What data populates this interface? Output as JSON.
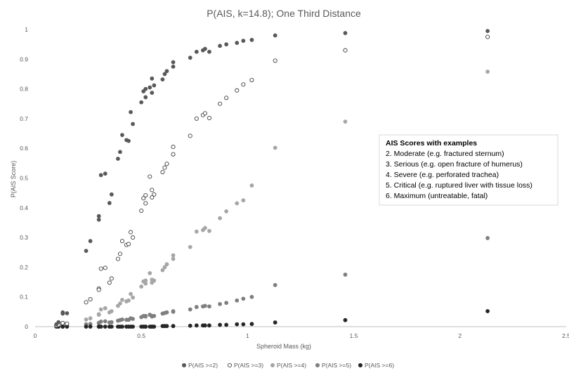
{
  "chart_data": {
    "type": "scatter",
    "title": "P(AIS, k=14.8); One Third Distance",
    "xlabel": "Spheroid Mass (kg)",
    "ylabel": "P(AIS Score)",
    "xlim": [
      0,
      2.5
    ],
    "ylim": [
      0,
      1
    ],
    "xticks": [
      0,
      0.5,
      1,
      1.5,
      2,
      2.5
    ],
    "xtick_labels": [
      "0",
      "0.5",
      "1",
      "1.5",
      "2",
      "2.5"
    ],
    "yticks": [
      0,
      0.1,
      0.2,
      0.3,
      0.4,
      0.5,
      0.6,
      0.7,
      0.8,
      0.9,
      1
    ],
    "ytick_labels": [
      "0",
      "0.1",
      "0.2",
      "0.3",
      "0.4",
      "0.5",
      "0.6",
      "0.7",
      "0.8",
      "0.9",
      "1"
    ],
    "grid": false,
    "legend_position": "bottom",
    "x": [
      0.1,
      0.11,
      0.13,
      0.13,
      0.15,
      0.24,
      0.26,
      0.3,
      0.3,
      0.31,
      0.33,
      0.35,
      0.36,
      0.39,
      0.4,
      0.41,
      0.43,
      0.44,
      0.45,
      0.46,
      0.5,
      0.51,
      0.52,
      0.52,
      0.54,
      0.55,
      0.55,
      0.56,
      0.6,
      0.61,
      0.62,
      0.65,
      0.65,
      0.73,
      0.76,
      0.79,
      0.8,
      0.82,
      0.87,
      0.9,
      0.95,
      0.98,
      1.02,
      1.13,
      1.46,
      2.13
    ],
    "series": [
      {
        "name": "P(AIS >=2)",
        "color": "#595959",
        "filled": true,
        "values": [
          0.008,
          0.015,
          0.048,
          0.044,
          0.045,
          0.255,
          0.288,
          0.372,
          0.36,
          0.51,
          0.515,
          0.416,
          0.445,
          0.565,
          0.588,
          0.645,
          0.628,
          0.625,
          0.722,
          0.682,
          0.755,
          0.792,
          0.772,
          0.8,
          0.805,
          0.787,
          0.835,
          0.812,
          0.832,
          0.85,
          0.86,
          0.875,
          0.89,
          0.905,
          0.925,
          0.93,
          0.935,
          0.925,
          0.945,
          0.95,
          0.955,
          0.962,
          0.965,
          0.98,
          0.988,
          0.995
        ]
      },
      {
        "name": "P(AIS >=3)",
        "color": "#595959",
        "filled": false,
        "values": [
          0.004,
          0.006,
          0.012,
          0.012,
          0.01,
          0.082,
          0.092,
          0.128,
          0.124,
          0.195,
          0.198,
          0.148,
          0.162,
          0.228,
          0.245,
          0.288,
          0.275,
          0.278,
          0.318,
          0.3,
          0.39,
          0.432,
          0.415,
          0.442,
          0.505,
          0.46,
          0.435,
          0.445,
          0.52,
          0.535,
          0.548,
          0.58,
          0.605,
          0.642,
          0.7,
          0.712,
          0.718,
          0.702,
          0.75,
          0.77,
          0.795,
          0.815,
          0.83,
          0.895,
          0.93,
          0.975
        ]
      },
      {
        "name": "P(AIS >=4)",
        "color": "#a6a6a6",
        "filled": true,
        "values": [
          0.002,
          0.003,
          0.004,
          0.004,
          0.004,
          0.024,
          0.028,
          0.042,
          0.04,
          0.058,
          0.062,
          0.048,
          0.052,
          0.07,
          0.078,
          0.09,
          0.085,
          0.088,
          0.11,
          0.098,
          0.135,
          0.152,
          0.145,
          0.155,
          0.18,
          0.158,
          0.148,
          0.155,
          0.19,
          0.2,
          0.21,
          0.228,
          0.24,
          0.268,
          0.32,
          0.325,
          0.332,
          0.322,
          0.365,
          0.388,
          0.415,
          0.425,
          0.475,
          0.602,
          0.69,
          0.858
        ]
      },
      {
        "name": "P(AIS >=5)",
        "color": "#7f7f7f",
        "filled": true,
        "values": [
          0.001,
          0.001,
          0.002,
          0.002,
          0.002,
          0.008,
          0.009,
          0.013,
          0.012,
          0.017,
          0.018,
          0.014,
          0.015,
          0.02,
          0.022,
          0.024,
          0.023,
          0.023,
          0.028,
          0.026,
          0.032,
          0.036,
          0.034,
          0.036,
          0.04,
          0.036,
          0.034,
          0.036,
          0.044,
          0.046,
          0.048,
          0.05,
          0.052,
          0.058,
          0.066,
          0.068,
          0.07,
          0.068,
          0.076,
          0.08,
          0.088,
          0.094,
          0.1,
          0.14,
          0.175,
          0.298
        ]
      },
      {
        "name": "P(AIS >=6)",
        "color": "#262626",
        "filled": true,
        "values": [
          0,
          0,
          0,
          0,
          0,
          0,
          0,
          0,
          0,
          0,
          0,
          0,
          0,
          0,
          0,
          0,
          0,
          0,
          0,
          0,
          0,
          0,
          0,
          0,
          0,
          0,
          0,
          0,
          0.002,
          0.002,
          0.002,
          0.002,
          0.002,
          0.003,
          0.004,
          0.004,
          0.004,
          0.004,
          0.006,
          0.006,
          0.008,
          0.008,
          0.009,
          0.014,
          0.022,
          0.052
        ]
      }
    ],
    "annotation": {
      "title": "AIS Scores with examples",
      "lines": [
        "2. Moderate (e.g. fractured sternum)",
        "3. Serious (e.g. open fracture of humerus)",
        "4. Severe (e.g. perforated trachea)",
        "5. Critical (e.g. ruptured liver with tissue loss)",
        "6. Maximum (untreatable, fatal)"
      ]
    }
  }
}
